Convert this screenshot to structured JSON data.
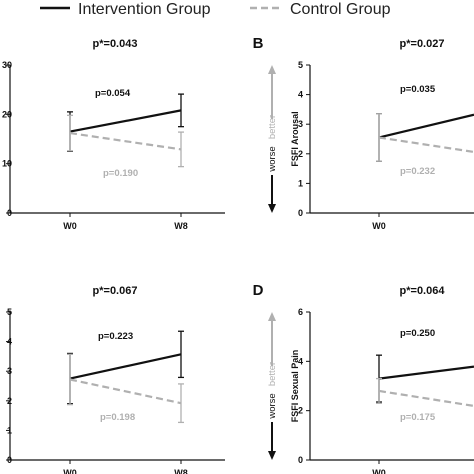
{
  "legend": {
    "intervention_label": "Intervention Group",
    "control_label": "Control Group",
    "intervention_color": "#111111",
    "control_color": "#b0b0b0"
  },
  "chart_data": [
    {
      "type": "line",
      "panel_letter": "",
      "title": "p*=0.043",
      "ylabel": "",
      "x": [
        "W0",
        "W8"
      ],
      "ylim": [
        0,
        30
      ],
      "yticks": [
        "0",
        "10",
        "20",
        "30"
      ],
      "show_arrows": false,
      "series": [
        {
          "name": "Intervention Group",
          "values": [
            16.5,
            20.8
          ],
          "errors": [
            4.0,
            3.3
          ],
          "p_label": "p=0.054"
        },
        {
          "name": "Control Group",
          "values": [
            16.2,
            12.9
          ],
          "errors": [
            3.6,
            3.5
          ],
          "p_label": "p=0.190"
        }
      ]
    },
    {
      "type": "line",
      "panel_letter": "B",
      "title": "p*=0.027",
      "ylabel": "FSFI Arousal",
      "x": [
        "W0",
        ""
      ],
      "ylim": [
        0,
        5
      ],
      "yticks": [
        "0",
        "1",
        "2",
        "3",
        "4",
        "5"
      ],
      "show_arrows": true,
      "arrow_up_label": "better",
      "arrow_down_label": "worse",
      "series": [
        {
          "name": "Intervention Group",
          "values": [
            2.55,
            3.5
          ],
          "errors": [
            0.8,
            0.0
          ],
          "p_label": "p=0.035"
        },
        {
          "name": "Control Group",
          "values": [
            2.55,
            1.95
          ],
          "errors": [
            0.8,
            0.0
          ],
          "p_label": "p=0.232"
        }
      ]
    },
    {
      "type": "line",
      "panel_letter": "",
      "title": "p*=0.067",
      "ylabel": "",
      "x": [
        "W0",
        "W8"
      ],
      "ylim": [
        0,
        5
      ],
      "yticks": [
        "0",
        "1",
        "2",
        "3",
        "4",
        "5"
      ],
      "show_arrows": false,
      "series": [
        {
          "name": "Intervention Group",
          "values": [
            2.75,
            3.57
          ],
          "errors": [
            0.85,
            0.78
          ],
          "p_label": "p=0.223"
        },
        {
          "name": "Control Group",
          "values": [
            2.72,
            1.92
          ],
          "errors": [
            0.85,
            0.65
          ],
          "p_label": "p=0.198"
        }
      ]
    },
    {
      "type": "line",
      "panel_letter": "D",
      "title": "p*=0.064",
      "ylabel": "FSFI Sexual Pain",
      "x": [
        "W0",
        ""
      ],
      "ylim": [
        0,
        6
      ],
      "yticks": [
        "0",
        "2",
        "4",
        "6"
      ],
      "show_arrows": true,
      "arrow_up_label": "better",
      "arrow_down_label": "worse",
      "series": [
        {
          "name": "Intervention Group",
          "values": [
            3.3,
            3.9
          ],
          "errors": [
            0.95,
            0.0
          ],
          "p_label": "p=0.250"
        },
        {
          "name": "Control Group",
          "values": [
            2.8,
            2.05
          ],
          "errors": [
            0.5,
            0.0
          ],
          "p_label": "p=0.175"
        }
      ]
    }
  ]
}
